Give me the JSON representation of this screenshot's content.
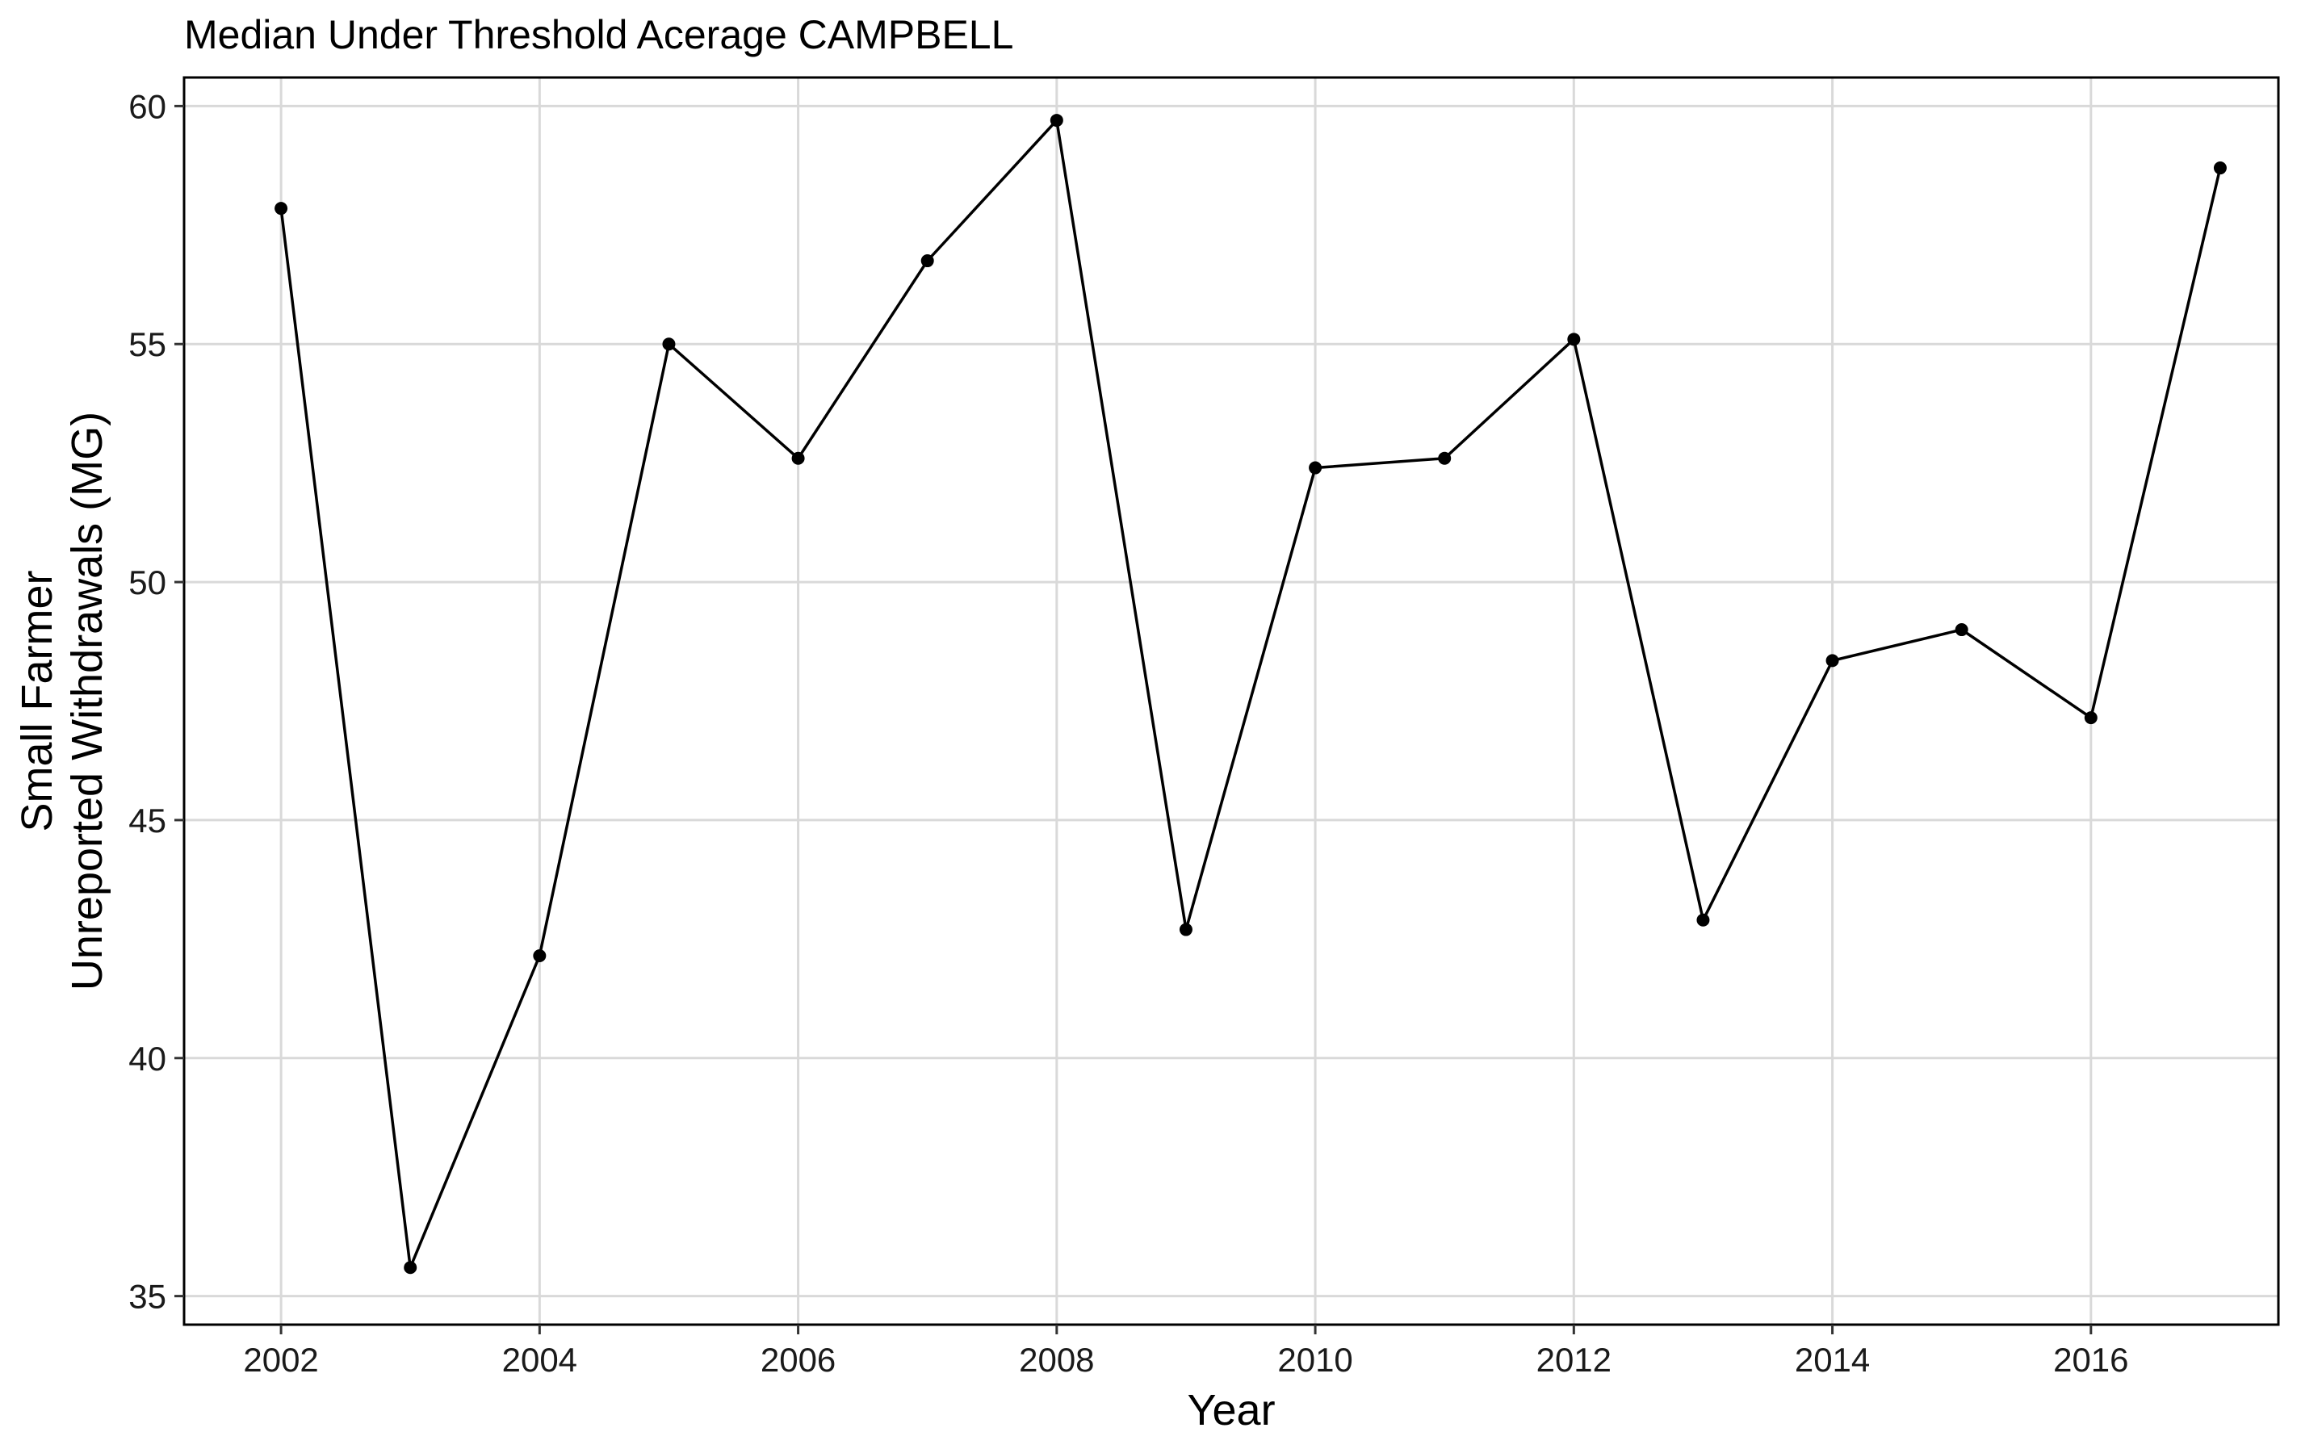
{
  "chart_data": {
    "type": "line",
    "title": "Median Under Threshold Acerage CAMPBELL",
    "xlabel": "Year",
    "ylabel_lines": [
      "Small Farmer",
      "Unreported Withdrawals (MG)"
    ],
    "x": [
      2002,
      2003,
      2004,
      2005,
      2006,
      2007,
      2008,
      2009,
      2010,
      2011,
      2012,
      2013,
      2014,
      2015,
      2016,
      2017
    ],
    "series": [
      {
        "values": [
          57.85,
          35.6,
          42.15,
          55.0,
          52.6,
          56.75,
          59.7,
          42.7,
          52.4,
          52.6,
          55.1,
          42.9,
          48.35,
          49.0,
          47.15,
          58.7
        ]
      }
    ],
    "x_ticks": [
      2002,
      2004,
      2006,
      2008,
      2010,
      2012,
      2014,
      2016
    ],
    "y_ticks": [
      35,
      40,
      45,
      50,
      55,
      60
    ],
    "xlim": [
      2001.25,
      2017.45
    ],
    "ylim": [
      34.4,
      60.6
    ],
    "grid": true,
    "line_color": "#000000",
    "point_color": "#000000",
    "grid_color": "#d9d9d9"
  }
}
